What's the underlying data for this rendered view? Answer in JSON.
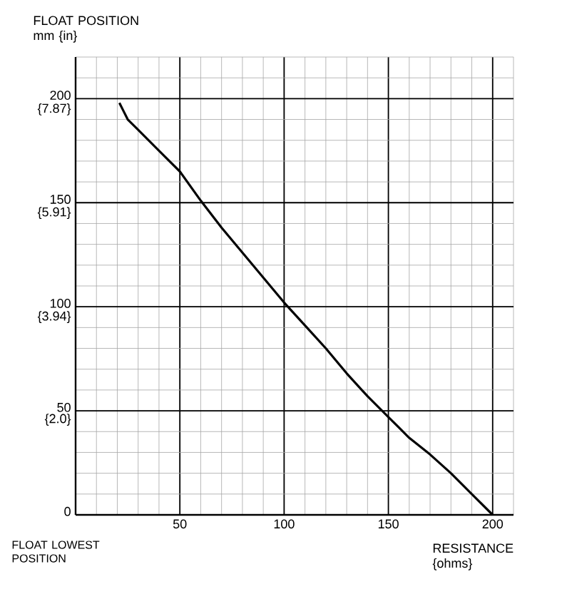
{
  "chart_data": {
    "type": "line",
    "ylabel": "FLOAT POSITION mm {in}",
    "xlabel": "RESISTANCE {ohms}",
    "annotations": [
      "FLOAT LOWEST POSITION"
    ],
    "xlim": [
      0,
      210
    ],
    "ylim": [
      0,
      220
    ],
    "xticks": [
      50,
      100,
      150,
      200
    ],
    "yticks": [
      0,
      50,
      100,
      150,
      200
    ],
    "y2lim": [
      0,
      8.661
    ],
    "y2ticks": [
      {
        "value": 2.0,
        "label": "{2.0}"
      },
      {
        "value": 3.94,
        "label": "{3.94}"
      },
      {
        "value": 5.91,
        "label": "{5.91}"
      },
      {
        "value": 7.87,
        "label": "{7.87}"
      }
    ],
    "grid": true,
    "series": [
      {
        "color": "#000000",
        "x": [
          21,
          23,
          25,
          29,
          40,
          50,
          60,
          70,
          80,
          90,
          100,
          110,
          120,
          130,
          140,
          150,
          155,
          160,
          170,
          180,
          190,
          200
        ],
        "values": [
          198,
          194,
          190,
          186,
          175,
          165,
          151,
          138,
          126,
          114,
          102,
          91,
          80,
          68,
          57,
          47,
          42,
          37,
          29,
          20,
          10,
          0
        ]
      }
    ]
  }
}
